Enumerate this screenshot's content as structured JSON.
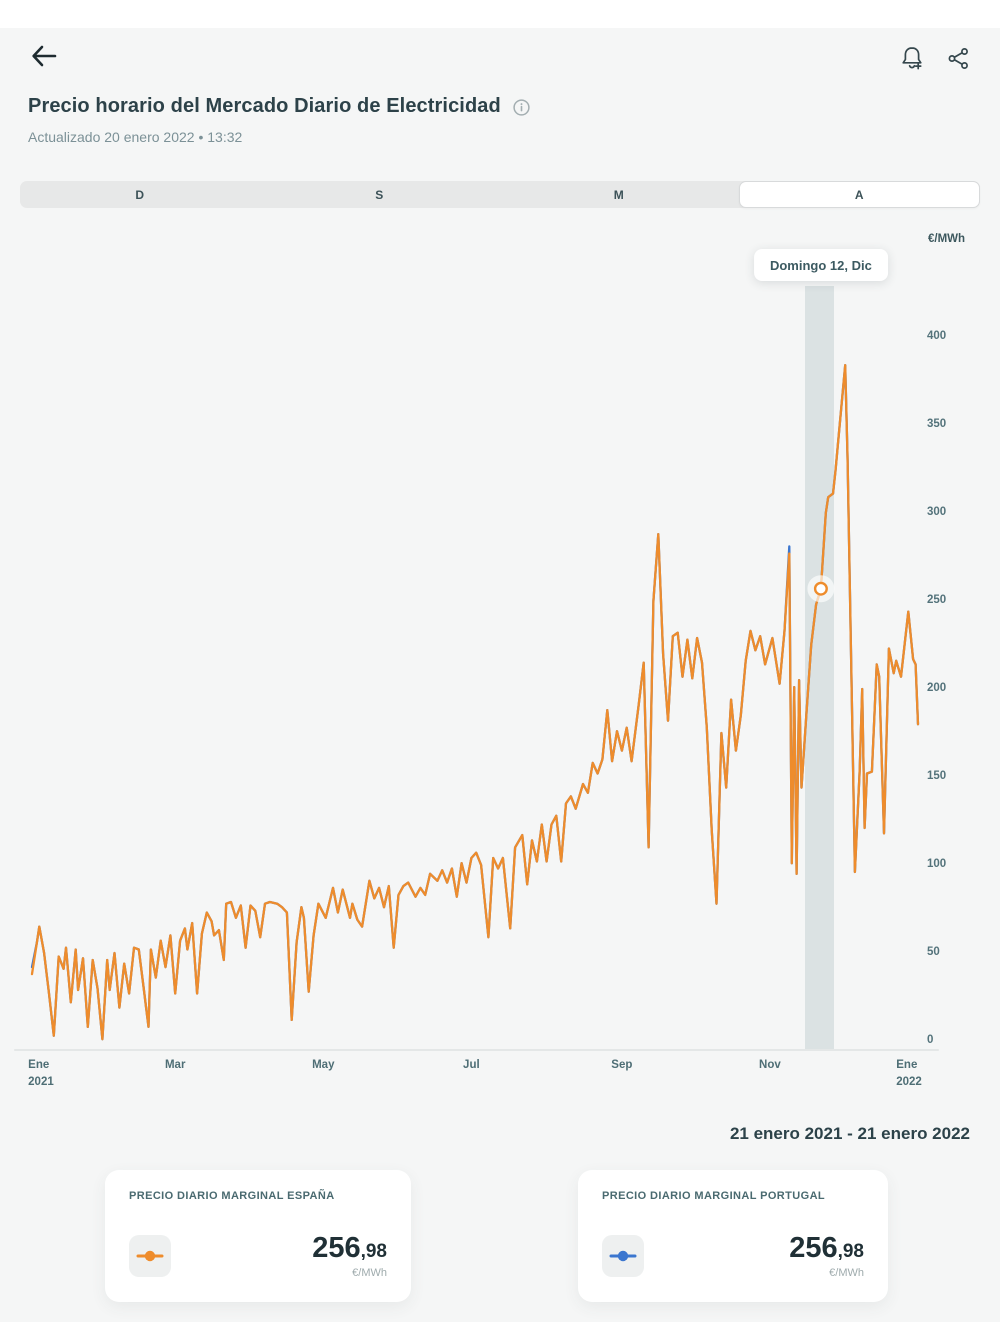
{
  "header": {
    "title": "Precio horario del Mercado Diario de Electricidad",
    "updated": "Actualizado 20 enero 2022  •  13:32",
    "icons": {
      "back": "back-arrow",
      "notification": "bell-add",
      "share": "share",
      "info": "info-circle"
    },
    "tabs": [
      {
        "label": "D",
        "selected": false
      },
      {
        "label": "S",
        "selected": false
      },
      {
        "label": "M",
        "selected": false
      },
      {
        "label": "A",
        "selected": true
      }
    ]
  },
  "chart_data": {
    "type": "line",
    "title": "Precio horario del Mercado Diario de Electricidad",
    "unit": "€/MWh",
    "ylabel": "€/MWh",
    "ylim": [
      0,
      430
    ],
    "y_ticks": [
      400,
      350,
      300,
      250,
      200,
      150,
      100,
      50,
      0
    ],
    "x_ticks": [
      {
        "label": "Ene",
        "sublabel": "2021",
        "day": 0
      },
      {
        "label": "Mar",
        "day": 59
      },
      {
        "label": "May",
        "day": 120
      },
      {
        "label": "Jul",
        "day": 181
      },
      {
        "label": "Sep",
        "day": 243
      },
      {
        "label": "Nov",
        "day": 304
      },
      {
        "label": "Ene",
        "sublabel": "2022",
        "day": 365
      }
    ],
    "x_range_days": [
      0,
      365
    ],
    "tooltip": {
      "label": "Domingo 12, Dic"
    },
    "selected_point": {
      "day": 325,
      "value": 256.98
    },
    "legend_position": "bottom-cards",
    "grid": false,
    "series": [
      {
        "name": "Precio diario marginal España",
        "color": "#ee8c2c",
        "points": [
          [
            0,
            38
          ],
          [
            2,
            56
          ],
          [
            3,
            65
          ],
          [
            5,
            50
          ],
          [
            7,
            27
          ],
          [
            9,
            3
          ],
          [
            11,
            48
          ],
          [
            13,
            41
          ],
          [
            14,
            53
          ],
          [
            16,
            22
          ],
          [
            18,
            52
          ],
          [
            19,
            29
          ],
          [
            21,
            47
          ],
          [
            23,
            8
          ],
          [
            25,
            46
          ],
          [
            27,
            30
          ],
          [
            29,
            1
          ],
          [
            31,
            46
          ],
          [
            32,
            29
          ],
          [
            34,
            50
          ],
          [
            36,
            19
          ],
          [
            38,
            44
          ],
          [
            40,
            27
          ],
          [
            42,
            53
          ],
          [
            44,
            52
          ],
          [
            46,
            30
          ],
          [
            48,
            8
          ],
          [
            49,
            52
          ],
          [
            51,
            36
          ],
          [
            53,
            57
          ],
          [
            55,
            42
          ],
          [
            57,
            60
          ],
          [
            59,
            27
          ],
          [
            61,
            57
          ],
          [
            63,
            64
          ],
          [
            64,
            52
          ],
          [
            66,
            67
          ],
          [
            68,
            27
          ],
          [
            70,
            61
          ],
          [
            72,
            73
          ],
          [
            74,
            68
          ],
          [
            75,
            60
          ],
          [
            77,
            63
          ],
          [
            79,
            46
          ],
          [
            80,
            78
          ],
          [
            82,
            79
          ],
          [
            84,
            70
          ],
          [
            86,
            77
          ],
          [
            88,
            53
          ],
          [
            90,
            77
          ],
          [
            92,
            74
          ],
          [
            94,
            59
          ],
          [
            96,
            78
          ],
          [
            98,
            79
          ],
          [
            101,
            78
          ],
          [
            103,
            76
          ],
          [
            105,
            73
          ],
          [
            107,
            12
          ],
          [
            109,
            56
          ],
          [
            111,
            76
          ],
          [
            112,
            70
          ],
          [
            114,
            28
          ],
          [
            116,
            60
          ],
          [
            118,
            78
          ],
          [
            121,
            70
          ],
          [
            124,
            87
          ],
          [
            126,
            73
          ],
          [
            128,
            86
          ],
          [
            131,
            70
          ],
          [
            132,
            78
          ],
          [
            134,
            69
          ],
          [
            136,
            65
          ],
          [
            139,
            91
          ],
          [
            141,
            81
          ],
          [
            143,
            87
          ],
          [
            145,
            76
          ],
          [
            147,
            88
          ],
          [
            149,
            53
          ],
          [
            151,
            83
          ],
          [
            153,
            88
          ],
          [
            155,
            90
          ],
          [
            158,
            82
          ],
          [
            160,
            87
          ],
          [
            162,
            83
          ],
          [
            164,
            95
          ],
          [
            167,
            91
          ],
          [
            169,
            97
          ],
          [
            171,
            90
          ],
          [
            173,
            98
          ],
          [
            175,
            82
          ],
          [
            177,
            101
          ],
          [
            179,
            90
          ],
          [
            181,
            104
          ],
          [
            183,
            107
          ],
          [
            185,
            100
          ],
          [
            188,
            59
          ],
          [
            190,
            104
          ],
          [
            192,
            98
          ],
          [
            194,
            104
          ],
          [
            197,
            64
          ],
          [
            199,
            110
          ],
          [
            202,
            117
          ],
          [
            204,
            89
          ],
          [
            206,
            114
          ],
          [
            208,
            102
          ],
          [
            210,
            123
          ],
          [
            212,
            102
          ],
          [
            214,
            123
          ],
          [
            216,
            128
          ],
          [
            218,
            102
          ],
          [
            220,
            135
          ],
          [
            222,
            139
          ],
          [
            224,
            132
          ],
          [
            227,
            146
          ],
          [
            229,
            141
          ],
          [
            231,
            158
          ],
          [
            233,
            152
          ],
          [
            235,
            160
          ],
          [
            237,
            188
          ],
          [
            239,
            159
          ],
          [
            241,
            176
          ],
          [
            243,
            165
          ],
          [
            245,
            178
          ],
          [
            247,
            159
          ],
          [
            250,
            192
          ],
          [
            252,
            215
          ],
          [
            254,
            110
          ],
          [
            256,
            250
          ],
          [
            258,
            288
          ],
          [
            260,
            220
          ],
          [
            262,
            182
          ],
          [
            264,
            230
          ],
          [
            266,
            232
          ],
          [
            268,
            207
          ],
          [
            270,
            228
          ],
          [
            272,
            206
          ],
          [
            274,
            229
          ],
          [
            276,
            215
          ],
          [
            278,
            178
          ],
          [
            280,
            120
          ],
          [
            282,
            78
          ],
          [
            284,
            175
          ],
          [
            286,
            144
          ],
          [
            288,
            194
          ],
          [
            290,
            165
          ],
          [
            292,
            185
          ],
          [
            294,
            216
          ],
          [
            296,
            233
          ],
          [
            298,
            222
          ],
          [
            300,
            230
          ],
          [
            302,
            214
          ],
          [
            305,
            229
          ],
          [
            308,
            203
          ],
          [
            310,
            233
          ],
          [
            312,
            277
          ],
          [
            313,
            101
          ],
          [
            314,
            201
          ],
          [
            315,
            95
          ],
          [
            316,
            205
          ],
          [
            317,
            144
          ],
          [
            319,
            185
          ],
          [
            321,
            225
          ],
          [
            323,
            248
          ],
          [
            325,
            256.98
          ],
          [
            327,
            300
          ],
          [
            328,
            309
          ],
          [
            330,
            311
          ],
          [
            331,
            324
          ],
          [
            332,
            339
          ],
          [
            335,
            384
          ],
          [
            336,
            330
          ],
          [
            339,
            96
          ],
          [
            341,
            154
          ],
          [
            342,
            200
          ],
          [
            343,
            121
          ],
          [
            344,
            152
          ],
          [
            346,
            153
          ],
          [
            348,
            214
          ],
          [
            349,
            207
          ],
          [
            351,
            118
          ],
          [
            353,
            223
          ],
          [
            355,
            209
          ],
          [
            356,
            216
          ],
          [
            358,
            207
          ],
          [
            361,
            244
          ],
          [
            363,
            217
          ],
          [
            364,
            214
          ],
          [
            365,
            180
          ]
        ]
      },
      {
        "name": "Precio diario marginal Portugal",
        "color": "#3b76cf",
        "base": "España",
        "overrides": [
          [
            0,
            42
          ],
          [
            312,
            281
          ],
          [
            318,
            213
          ]
        ]
      }
    ]
  },
  "footer": {
    "range": "21 enero 2021 - 21 enero 2022"
  },
  "cards": [
    {
      "label": "PRECIO DIARIO MARGINAL ESPAÑA",
      "value_int": "256",
      "value_dec": ",98",
      "unit": "€/MWh",
      "color": "#ee8c2c"
    },
    {
      "label": "PRECIO DIARIO MARGINAL PORTUGAL",
      "value_int": "256",
      "value_dec": ",98",
      "unit": "€/MWh",
      "color": "#3b76cf"
    }
  ],
  "colors": {
    "page_bg": "#f5f6f6",
    "title_text": "#2d4249",
    "axis_text": "#54737b",
    "selection_band": "#dbe2e3",
    "spain_accent": "#ee8c2c",
    "portugal_accent": "#3b76cf"
  }
}
